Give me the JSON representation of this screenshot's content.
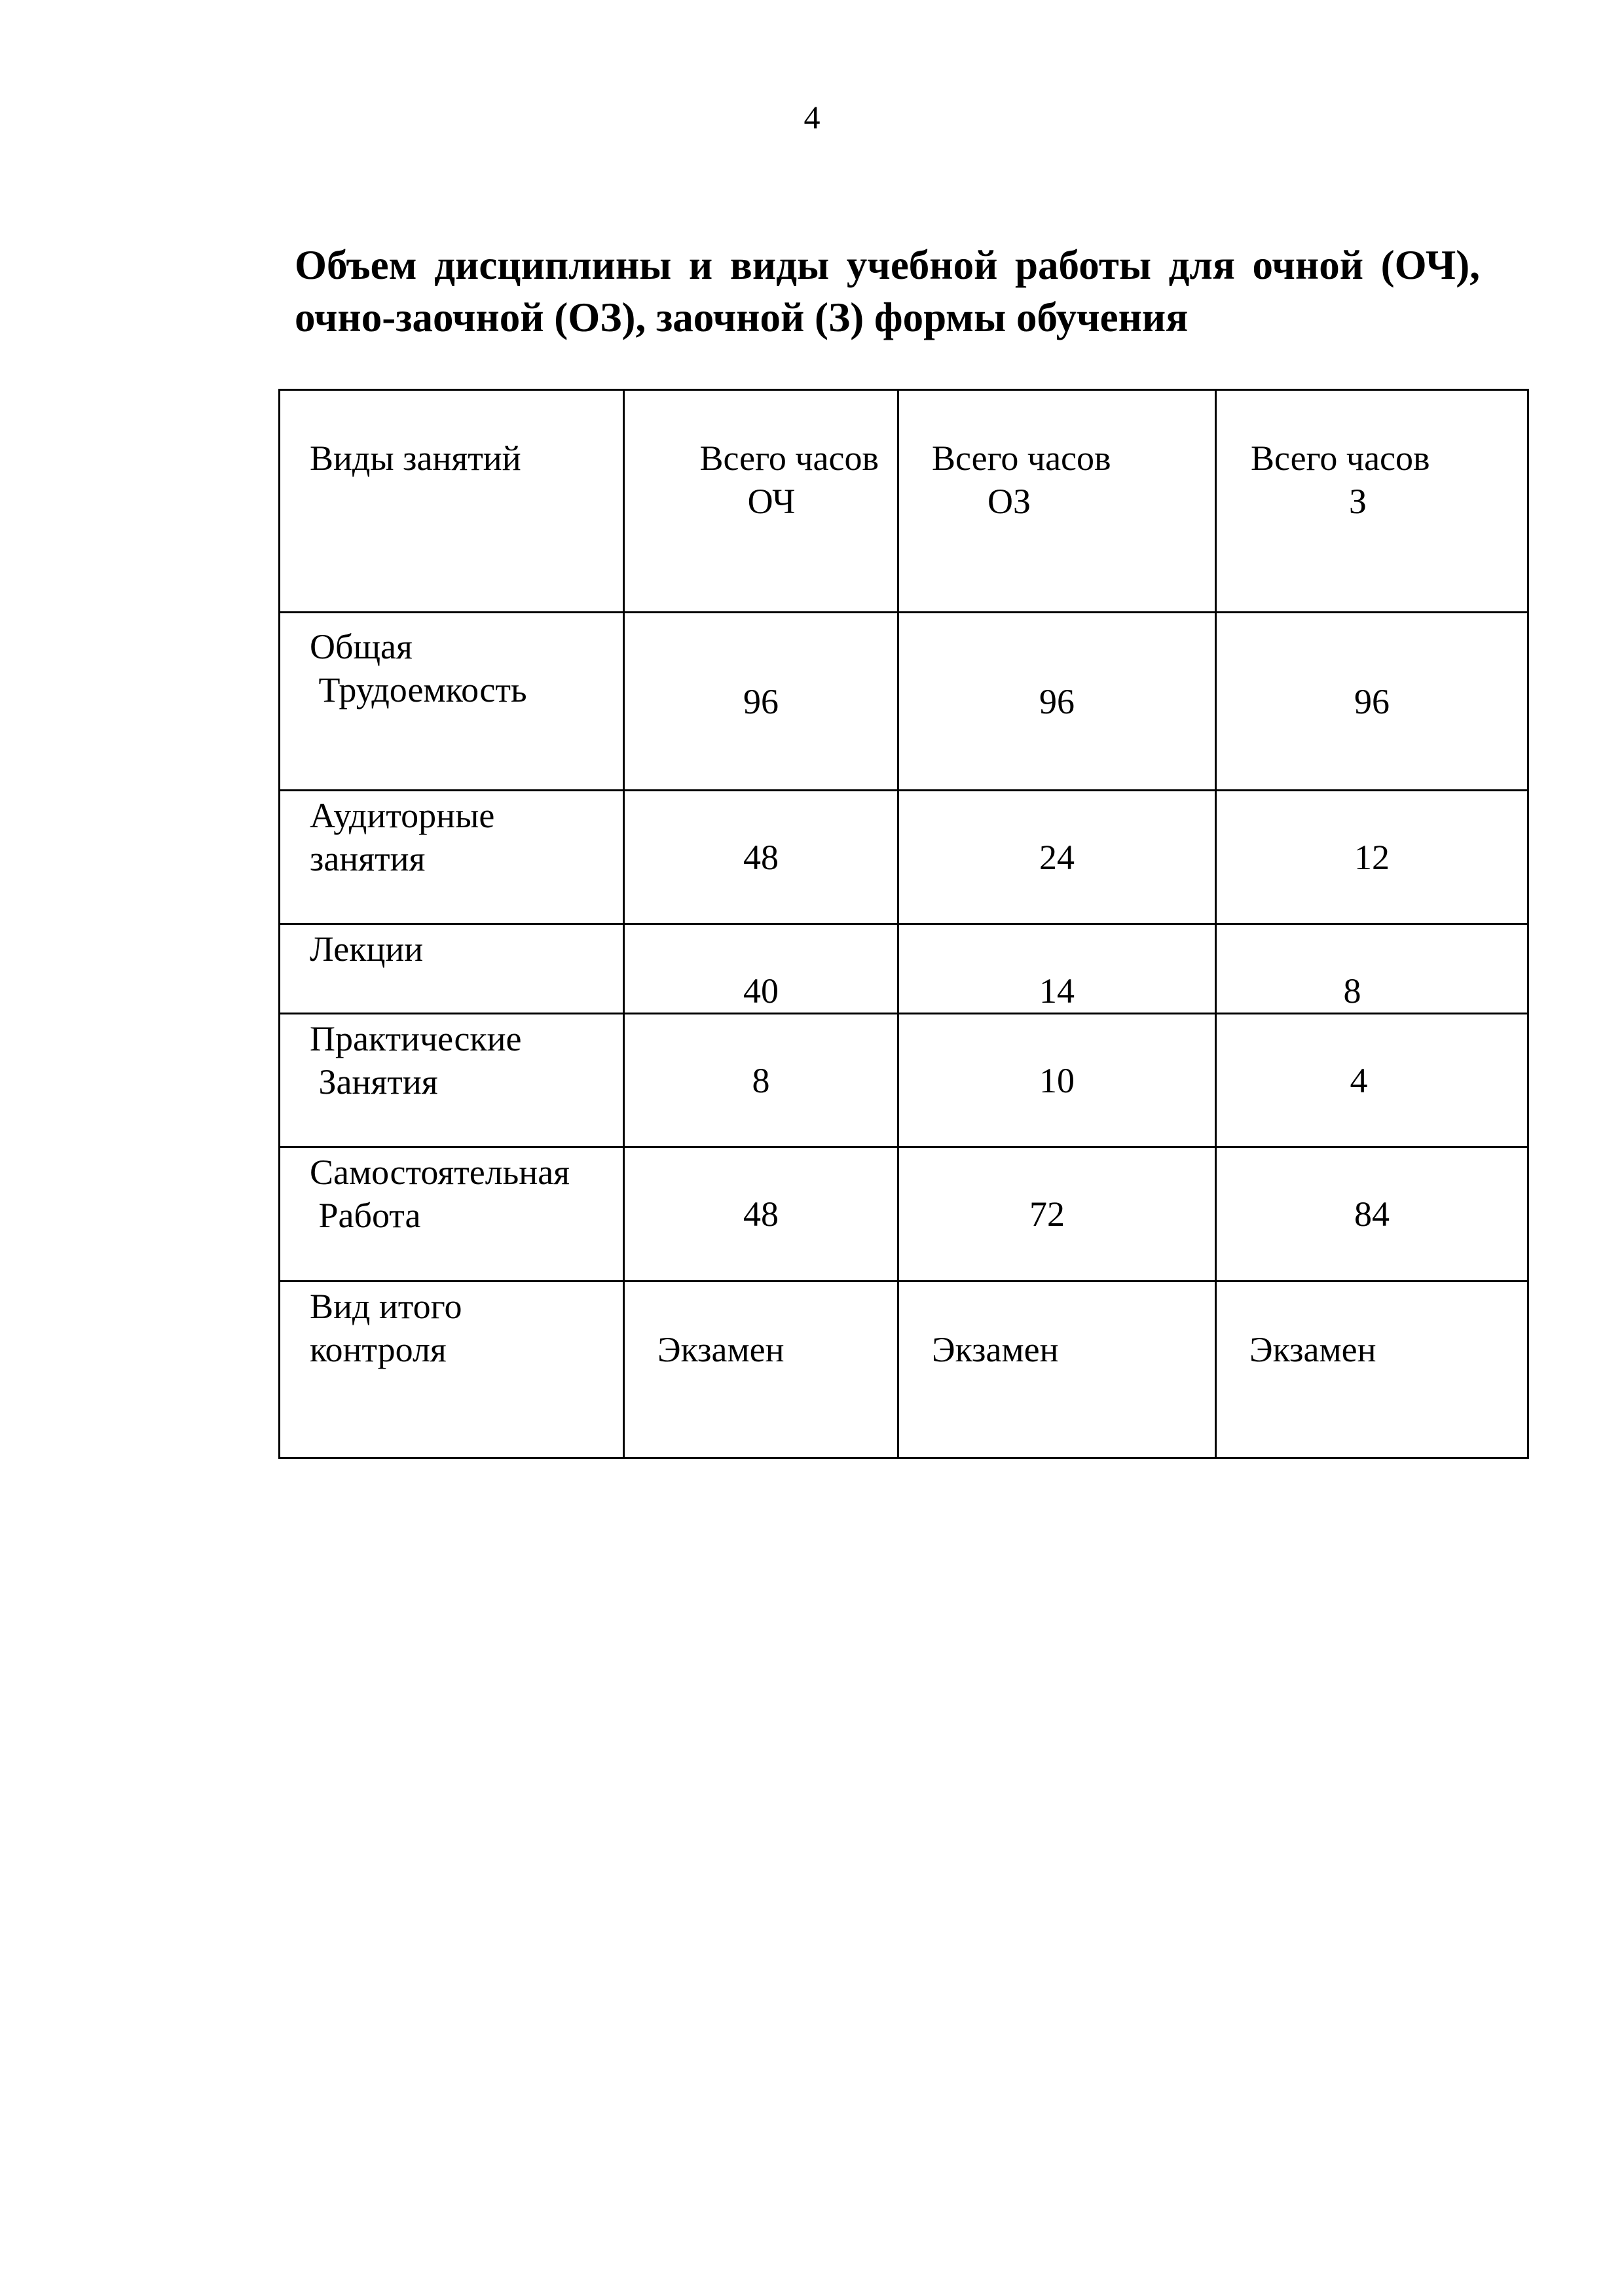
{
  "page_number": "4",
  "title": "Объем дисциплины и виды учебной работы для очной (ОЧ), очно-заочной (ОЗ),  заочной (З) формы обучения",
  "table": {
    "header": {
      "col0": "Виды занятий",
      "col1": [
        "Всего часов",
        "ОЧ"
      ],
      "col2": [
        "Всего часов",
        "ОЗ"
      ],
      "col3": [
        "Всего часов",
        "З"
      ]
    },
    "rows": [
      {
        "label": [
          "Общая",
          " Трудоемкость"
        ],
        "values": [
          "96",
          "96",
          "96"
        ]
      },
      {
        "label": [
          "Аудиторные",
          "занятия"
        ],
        "values": [
          "48",
          "24",
          "12"
        ]
      },
      {
        "label": [
          "Лекции"
        ],
        "values": [
          "40",
          "14",
          "8"
        ]
      },
      {
        "label": [
          "Практические",
          " Занятия"
        ],
        "values": [
          "8",
          "10",
          "4"
        ]
      },
      {
        "label": [
          "Самостоятельная",
          " Работа"
        ],
        "values": [
          "48",
          "72",
          "84"
        ]
      },
      {
        "label": [
          "Вид итого",
          "контроля"
        ],
        "values": [
          "Экзамен",
          "Экзамен",
          "Экзамен"
        ]
      }
    ]
  }
}
